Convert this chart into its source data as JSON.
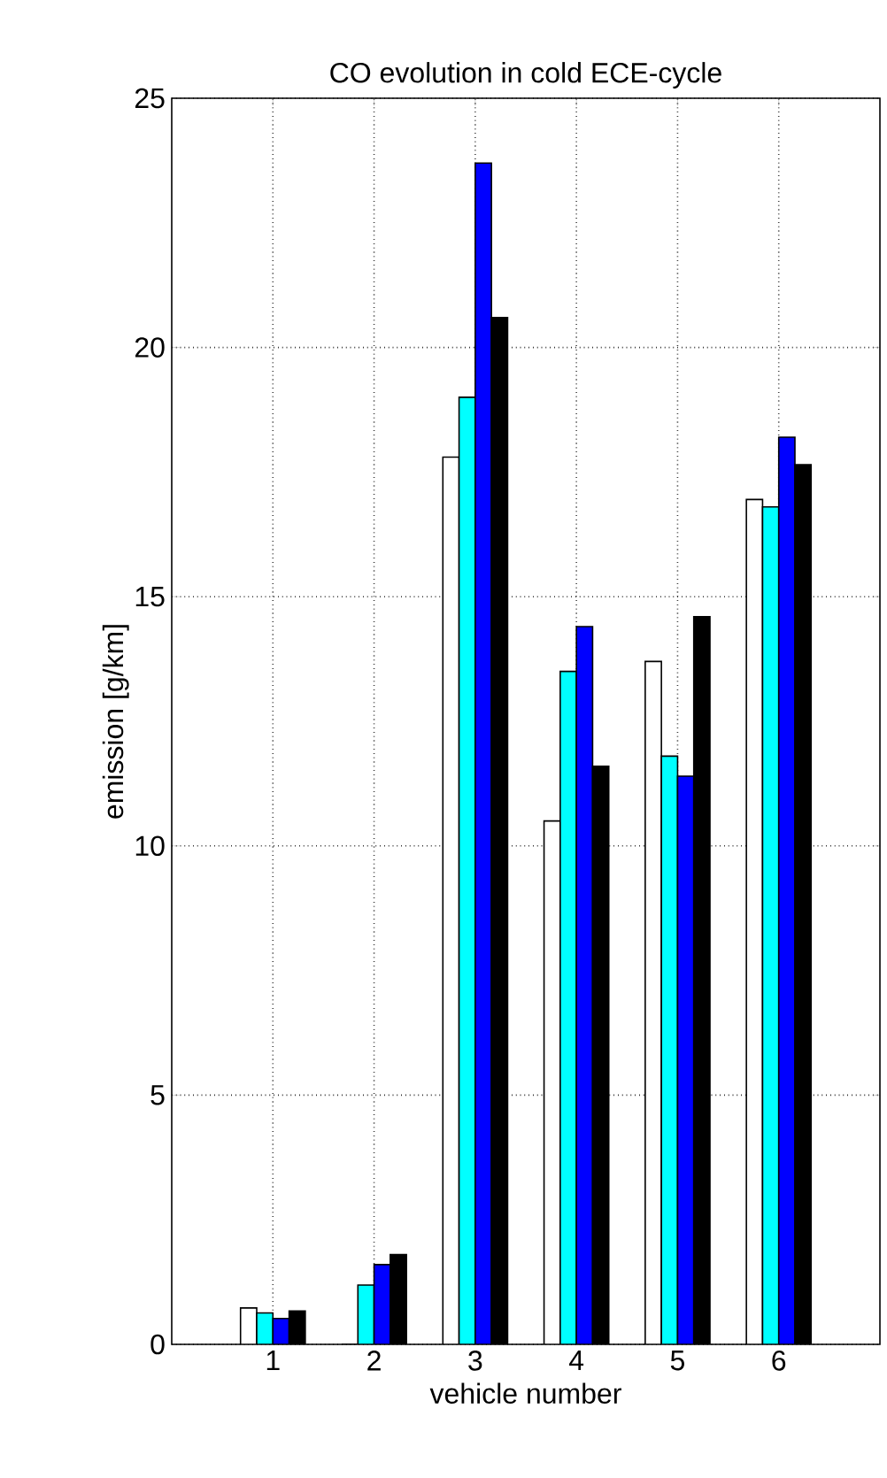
{
  "chart_data": {
    "type": "bar",
    "title": "CO evolution in cold ECE-cycle",
    "xlabel": "vehicle number",
    "ylabel": "emission [g/km]",
    "categories": [
      "1",
      "2",
      "3",
      "4",
      "5",
      "6"
    ],
    "series": [
      {
        "color": "#ffffff",
        "values": [
          0.73,
          0,
          17.8,
          10.5,
          13.7,
          16.95
        ]
      },
      {
        "color": "#00ffff",
        "values": [
          0.63,
          1.19,
          19.0,
          13.5,
          11.8,
          16.8
        ]
      },
      {
        "color": "#0000ff",
        "values": [
          0.52,
          1.6,
          23.7,
          14.4,
          11.4,
          18.2
        ]
      },
      {
        "color": "#000000",
        "values": [
          0.67,
          1.8,
          20.6,
          11.6,
          14.6,
          17.65
        ]
      }
    ],
    "ylim": [
      0,
      25
    ],
    "yticks": [
      0,
      5,
      10,
      15,
      20,
      25
    ],
    "grid": true
  }
}
